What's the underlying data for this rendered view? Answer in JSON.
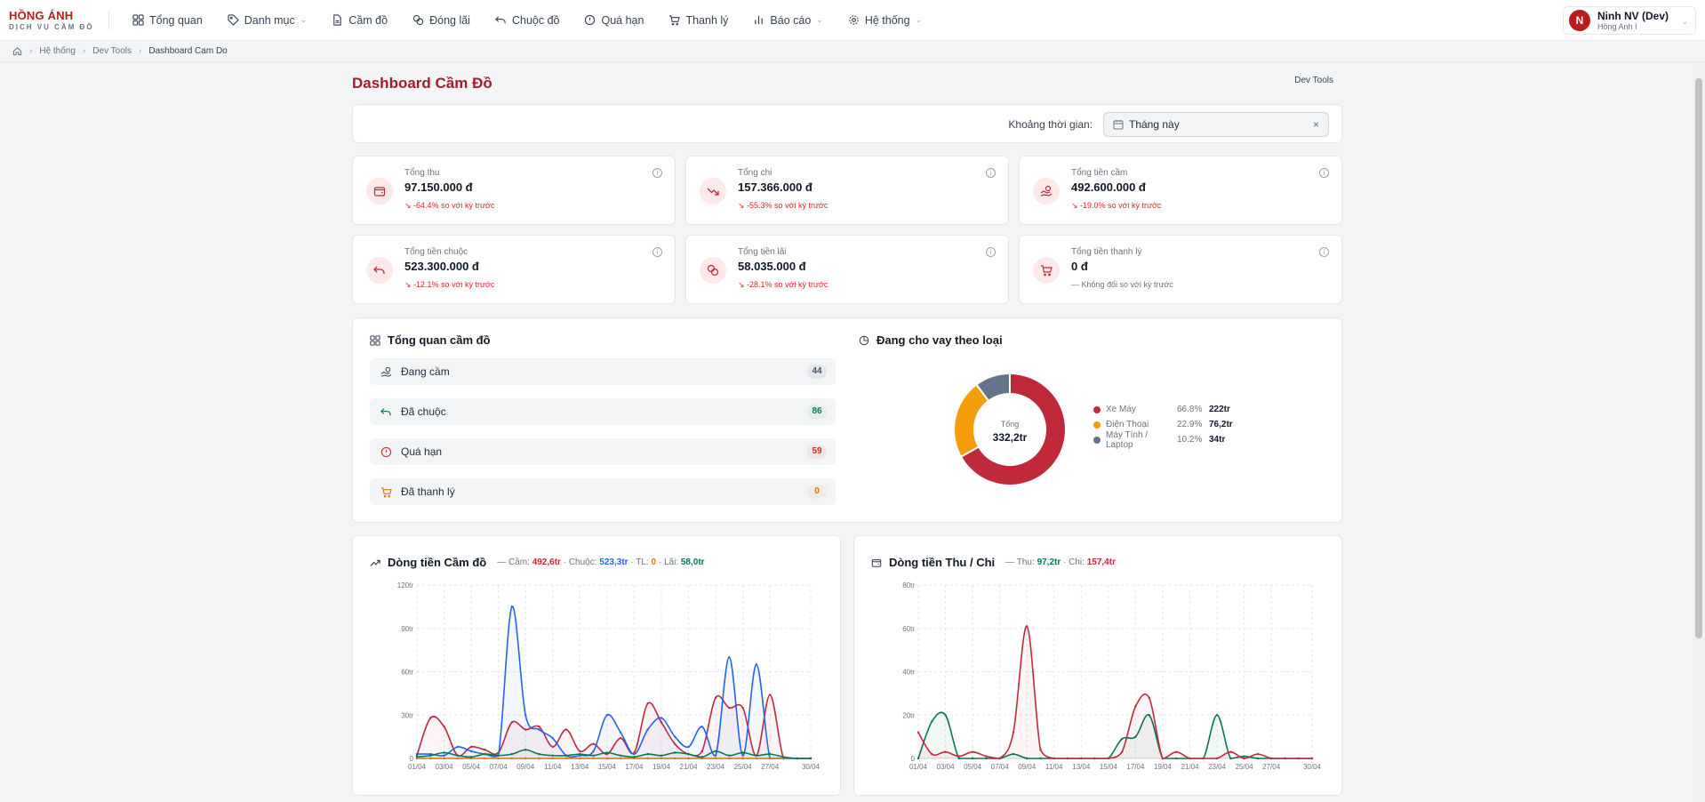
{
  "brand": {
    "line1": "HỒNG ÁNH",
    "line2": "DỊCH VỤ CẦM ĐỒ"
  },
  "nav": [
    {
      "label": "Tổng quan",
      "icon": "grid-icon",
      "dropdown": false
    },
    {
      "label": "Danh mục",
      "icon": "tag-icon",
      "dropdown": true
    },
    {
      "label": "Cầm đồ",
      "icon": "file-icon",
      "dropdown": false
    },
    {
      "label": "Đóng lãi",
      "icon": "coins-icon",
      "dropdown": false
    },
    {
      "label": "Chuộc đồ",
      "icon": "undo-icon",
      "dropdown": false
    },
    {
      "label": "Quá hạn",
      "icon": "alert-circle-icon",
      "dropdown": false
    },
    {
      "label": "Thanh lý",
      "icon": "cart-icon",
      "dropdown": false
    },
    {
      "label": "Báo cáo",
      "icon": "bar-chart-icon",
      "dropdown": true
    },
    {
      "label": "Hệ thống",
      "icon": "gear-icon",
      "dropdown": true
    }
  ],
  "user": {
    "initial": "N",
    "name": "Ninh NV (Dev)",
    "branch": "Hồng Anh I"
  },
  "breadcrumb": {
    "home_icon": "home-icon",
    "items": [
      "Hệ thống",
      "Dev Tools",
      "Dashboard Cam Do"
    ]
  },
  "page": {
    "title": "Dashboard Cầm Đồ",
    "dev_tools": "Dev Tools"
  },
  "filter": {
    "label": "Khoảng thời gian:",
    "value": "Tháng này",
    "icon": "calendar-icon",
    "clear": "×"
  },
  "stats": [
    {
      "label": "Tổng thu",
      "value": "97.150.000 đ",
      "trend": "↘ -64.4% so với kỳ trước",
      "icon": "wallet-icon",
      "trend_type": "down"
    },
    {
      "label": "Tổng chi",
      "value": "157.366.000 đ",
      "trend": "↘ -55.3% so với kỳ trước",
      "icon": "trending-down-icon",
      "trend_type": "down"
    },
    {
      "label": "Tổng tiền cầm",
      "value": "492.600.000 đ",
      "trend": "↘ -19.0% so với kỳ trước",
      "icon": "hand-coins-icon",
      "trend_type": "down"
    },
    {
      "label": "Tổng tiền chuộc",
      "value": "523.300.000 đ",
      "trend": "↘ -12.1% so với kỳ trước",
      "icon": "undo-icon",
      "trend_type": "down"
    },
    {
      "label": "Tổng tiền lãi",
      "value": "58.035.000 đ",
      "trend": "↘ -28.1% so với kỳ trước",
      "icon": "coins-icon",
      "trend_type": "down"
    },
    {
      "label": "Tổng tiền thanh lý",
      "value": "0 đ",
      "trend": "— Không đổi so với kỳ trước",
      "icon": "cart-icon",
      "trend_type": "neutral"
    }
  ],
  "overview": {
    "title": "Tổng quan cầm đồ",
    "rows": [
      {
        "label": "Đang cầm",
        "count": "44",
        "icon": "hand-coins-icon",
        "count_color": "#4b5563"
      },
      {
        "label": "Đã chuộc",
        "count": "86",
        "icon": "undo-icon",
        "count_color": "#047857"
      },
      {
        "label": "Quá hạn",
        "count": "59",
        "icon": "alert-circle-icon",
        "count_color": "#dc2626"
      },
      {
        "label": "Đã thanh lý",
        "count": "0",
        "icon": "cart-icon",
        "count_color": "#d97706"
      }
    ]
  },
  "donut": {
    "title": "Đang cho vay theo loại",
    "center_label": "Tổng",
    "center_value": "332,2tr",
    "items": [
      {
        "name": "Xe Máy",
        "pct": "66.8%",
        "value": "222tr",
        "share": 66.8,
        "color": "#c0293a"
      },
      {
        "name": "Điện Thoại",
        "pct": "22.9%",
        "value": "76,2tr",
        "share": 22.9,
        "color": "#f59e0b"
      },
      {
        "name": "Máy Tính / Laptop",
        "pct": "10.2%",
        "value": "34tr",
        "share": 10.2,
        "color": "#64748b"
      }
    ]
  },
  "chart_data": [
    {
      "type": "line",
      "title": "Dòng tiền Cầm đồ",
      "summary": [
        {
          "label": "Cầm:",
          "value": "492,6tr",
          "color": "#c0293a"
        },
        {
          "label": "Chuộc:",
          "value": "523,3tr",
          "color": "#2563eb"
        },
        {
          "label": "TL:",
          "value": "0",
          "color": "#d97706"
        },
        {
          "label": "Lãi:",
          "value": "58,0tr",
          "color": "#047857"
        }
      ],
      "x": [
        "01/04",
        "02/04",
        "03/04",
        "04/04",
        "05/04",
        "06/04",
        "07/04",
        "08/04",
        "09/04",
        "10/04",
        "11/04",
        "12/04",
        "13/04",
        "14/04",
        "15/04",
        "16/04",
        "17/04",
        "18/04",
        "19/04",
        "20/04",
        "21/04",
        "22/04",
        "23/04",
        "24/04",
        "25/04",
        "26/04",
        "27/04",
        "28/04",
        "29/04",
        "30/04"
      ],
      "x_ticks": [
        "01/04",
        "03/04",
        "05/04",
        "07/04",
        "09/04",
        "11/04",
        "13/04",
        "15/04",
        "17/04",
        "19/04",
        "21/04",
        "23/04",
        "25/04",
        "27/04",
        "30/04"
      ],
      "y_ticks": [
        "0",
        "30tr",
        "60tr",
        "90tr",
        "120tr"
      ],
      "ylim": [
        0,
        120
      ],
      "series": [
        {
          "color": "#c0293a",
          "values": [
            2,
            28,
            22,
            2,
            8,
            6,
            4,
            25,
            20,
            22,
            8,
            20,
            5,
            10,
            3,
            14,
            4,
            38,
            25,
            10,
            3,
            5,
            42,
            35,
            35,
            2,
            44,
            0,
            0,
            0
          ]
        },
        {
          "color": "#2563eb",
          "values": [
            3,
            3,
            2,
            8,
            5,
            3,
            2,
            105,
            30,
            20,
            14,
            2,
            2,
            5,
            30,
            18,
            3,
            20,
            28,
            15,
            8,
            22,
            2,
            70,
            2,
            65,
            0,
            0,
            0,
            0
          ]
        },
        {
          "color": "#d97706",
          "values": [
            0,
            0,
            0,
            0,
            0,
            0,
            0,
            0,
            0,
            0,
            0,
            0,
            0,
            0,
            0,
            0,
            0,
            0,
            0,
            0,
            0,
            0,
            0,
            0,
            0,
            0,
            0,
            0,
            0,
            0
          ]
        },
        {
          "color": "#047857",
          "values": [
            1,
            2,
            4,
            2,
            1,
            3,
            2,
            3,
            6,
            3,
            2,
            2,
            3,
            2,
            4,
            2,
            1,
            3,
            2,
            4,
            3,
            1,
            5,
            2,
            4,
            2,
            3,
            1,
            0,
            0
          ]
        }
      ]
    },
    {
      "type": "line",
      "title": "Dòng tiền Thu / Chi",
      "summary": [
        {
          "label": "Thu:",
          "value": "97,2tr",
          "color": "#047857"
        },
        {
          "label": "Chi:",
          "value": "157,4tr",
          "color": "#c0293a"
        }
      ],
      "x": [
        "01/04",
        "02/04",
        "03/04",
        "04/04",
        "05/04",
        "06/04",
        "07/04",
        "08/04",
        "09/04",
        "10/04",
        "11/04",
        "12/04",
        "13/04",
        "14/04",
        "15/04",
        "16/04",
        "17/04",
        "18/04",
        "19/04",
        "20/04",
        "21/04",
        "22/04",
        "23/04",
        "24/04",
        "25/04",
        "26/04",
        "27/04",
        "28/04",
        "29/04",
        "30/04"
      ],
      "x_ticks": [
        "01/04",
        "03/04",
        "05/04",
        "07/04",
        "09/04",
        "11/04",
        "13/04",
        "15/04",
        "17/04",
        "19/04",
        "21/04",
        "23/04",
        "25/04",
        "27/04",
        "30/04"
      ],
      "y_ticks": [
        "0",
        "20tr",
        "40tr",
        "60tr",
        "80tr"
      ],
      "ylim": [
        0,
        80
      ],
      "series": [
        {
          "color": "#047857",
          "values": [
            0,
            17,
            20,
            0,
            0,
            0,
            0,
            2,
            0,
            0,
            0,
            0,
            0,
            0,
            0,
            9,
            10,
            20,
            0,
            0,
            0,
            0,
            20,
            0,
            1,
            0,
            0,
            0,
            0,
            0
          ]
        },
        {
          "color": "#c0293a",
          "values": [
            12,
            2,
            3,
            1,
            3,
            1,
            0,
            12,
            61,
            4,
            0,
            0,
            0,
            0,
            0,
            3,
            24,
            28,
            0,
            3,
            0,
            0,
            0,
            3,
            0,
            2,
            0,
            0,
            0,
            0
          ]
        }
      ]
    }
  ]
}
